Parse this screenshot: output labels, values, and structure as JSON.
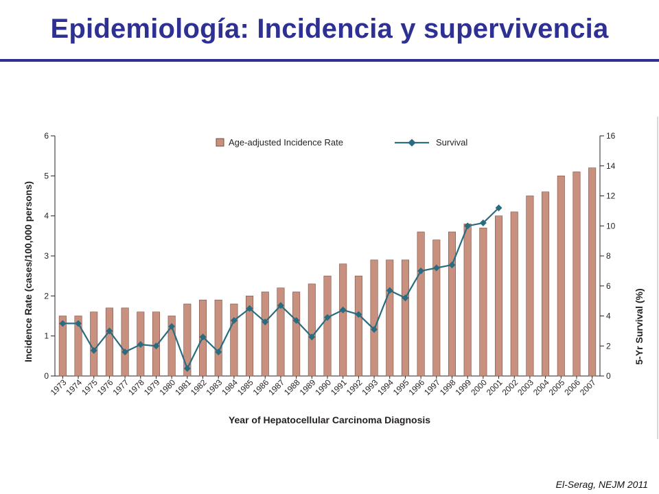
{
  "slide": {
    "title": "Epidemiología: Incidencia y supervivencia",
    "citation": "El-Serag, NEJM 2011"
  },
  "colors": {
    "title": "#2e3192",
    "bar_fill": "#c8917f",
    "bar_stroke": "#7a4b3e",
    "survival_line": "#2b6b80"
  },
  "chart_data": {
    "type": "bar",
    "xlabel": "Year of Hepatocellular Carcinoma Diagnosis",
    "ylabel": "Incidence Rate (cases/100,000 persons)",
    "y2label": "5-Yr Survival (%)",
    "ylim": [
      0,
      6
    ],
    "y2lim": [
      0,
      16
    ],
    "yticks": [
      0,
      1,
      2,
      3,
      4,
      5,
      6
    ],
    "y2ticks": [
      0,
      2,
      4,
      6,
      8,
      10,
      12,
      14,
      16
    ],
    "grid": false,
    "legend_position": "top-center",
    "categories": [
      "1973",
      "1974",
      "1975",
      "1976",
      "1977",
      "1978",
      "1979",
      "1980",
      "1981",
      "1982",
      "1983",
      "1984",
      "1985",
      "1986",
      "1987",
      "1988",
      "1989",
      "1990",
      "1991",
      "1992",
      "1993",
      "1994",
      "1995",
      "1996",
      "1997",
      "1998",
      "1999",
      "2000",
      "2001",
      "2002",
      "2003",
      "2004",
      "2005",
      "2006",
      "2007"
    ],
    "series": [
      {
        "name": "Age-adjusted Incidence Rate",
        "type": "bar",
        "axis": "left",
        "values": [
          1.5,
          1.5,
          1.6,
          1.7,
          1.7,
          1.6,
          1.6,
          1.5,
          1.8,
          1.9,
          1.9,
          1.8,
          2.0,
          2.1,
          2.2,
          2.1,
          2.3,
          2.5,
          2.8,
          2.5,
          2.9,
          2.9,
          2.9,
          3.6,
          3.4,
          3.6,
          3.8,
          3.7,
          4.0,
          4.1,
          4.5,
          4.6,
          5.0,
          5.1,
          5.2
        ]
      },
      {
        "name": "Survival",
        "type": "line",
        "axis": "right",
        "values": [
          3.5,
          3.5,
          1.7,
          3.0,
          1.6,
          2.1,
          2.0,
          3.3,
          0.5,
          2.6,
          1.6,
          3.7,
          4.5,
          3.6,
          4.7,
          3.7,
          2.6,
          3.9,
          4.4,
          4.1,
          3.1,
          5.7,
          5.2,
          7.0,
          7.2,
          7.4,
          10.0,
          10.2,
          11.2,
          null,
          null,
          null,
          null,
          null,
          null
        ]
      }
    ]
  }
}
